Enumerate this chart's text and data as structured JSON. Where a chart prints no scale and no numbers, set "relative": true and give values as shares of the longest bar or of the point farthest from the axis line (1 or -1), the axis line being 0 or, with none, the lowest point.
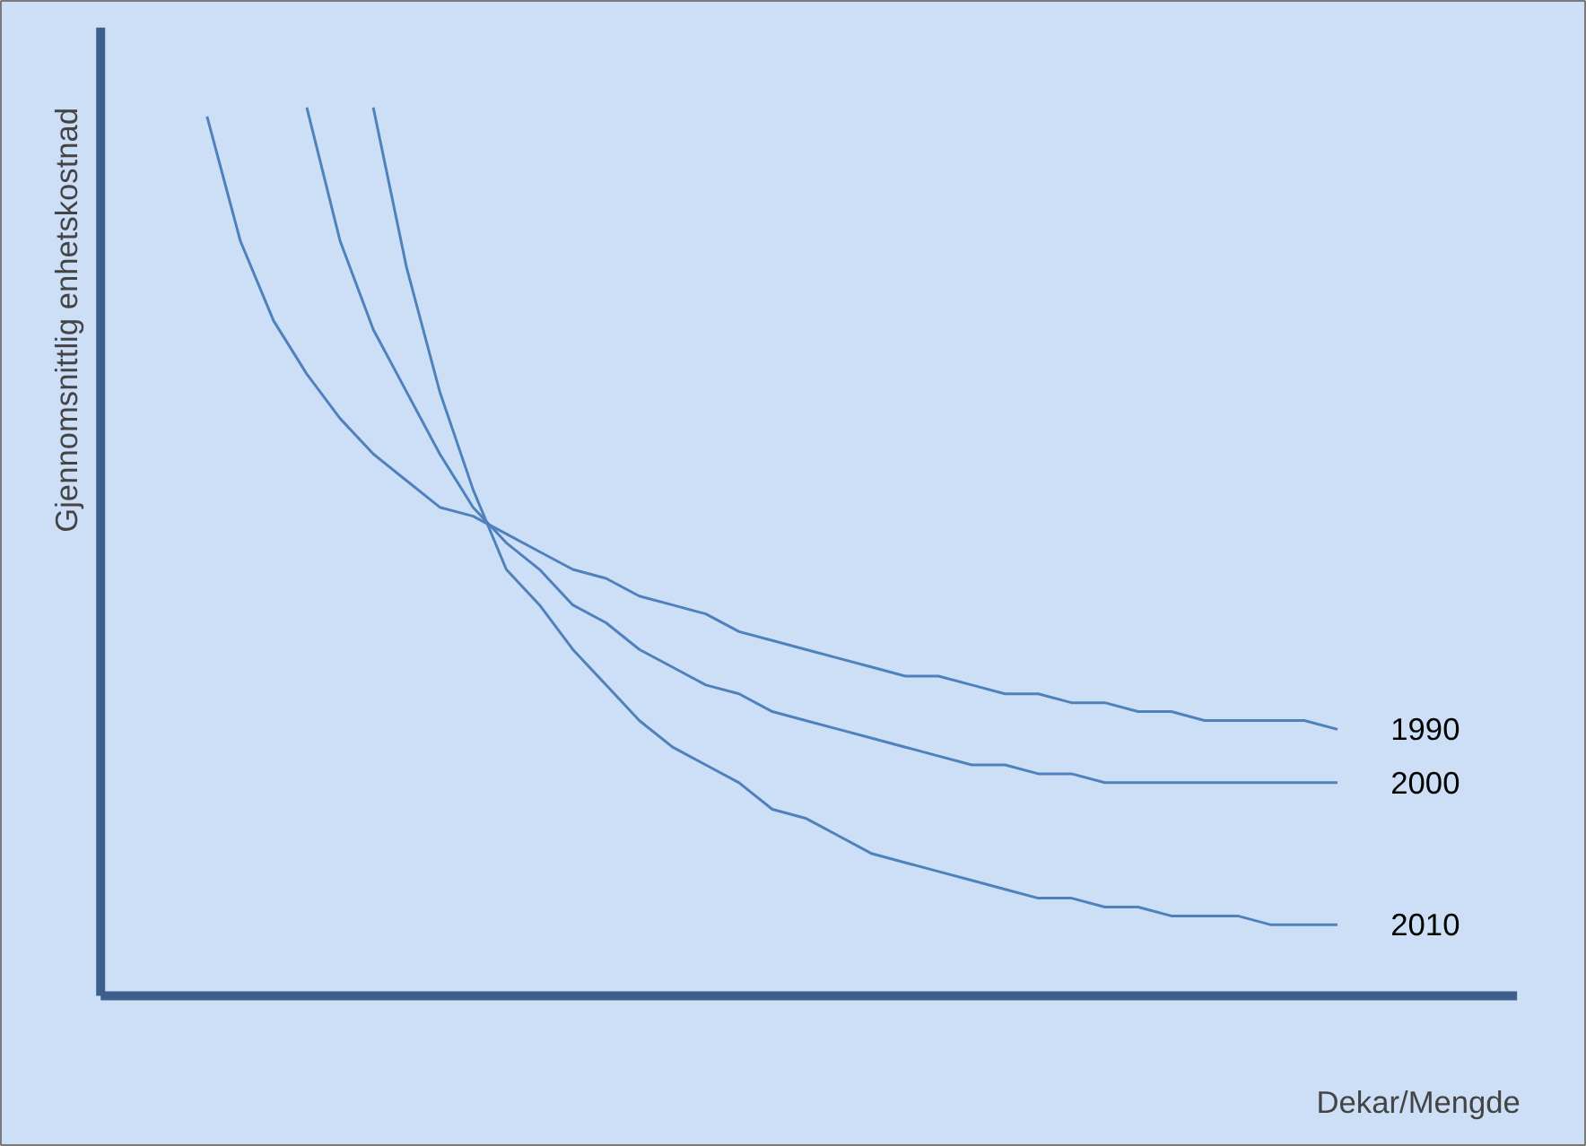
{
  "chart_data": {
    "type": "line",
    "relative": true,
    "xlabel": "Dekar/Mengde",
    "ylabel": "Gjennomsnittlig enhetskostnad",
    "grid": false,
    "marker": "none",
    "line_style": "solid",
    "categories": [
      null,
      null,
      null,
      null,
      null,
      null,
      null,
      null,
      null,
      null,
      null,
      null,
      null,
      null,
      null,
      null,
      null,
      null,
      null,
      null,
      null,
      null,
      null,
      null,
      null,
      null,
      null,
      null,
      null,
      null,
      null,
      null,
      null,
      null,
      null
    ],
    "series": [
      {
        "name": "1990",
        "color": "#4f81bd",
        "values": [
          0.99,
          0.85,
          0.76,
          0.7,
          0.65,
          0.61,
          0.58,
          0.55,
          0.54,
          0.52,
          0.5,
          0.48,
          0.47,
          0.45,
          0.44,
          0.43,
          0.41,
          0.4,
          0.39,
          0.38,
          0.37,
          0.36,
          0.36,
          0.35,
          0.34,
          0.34,
          0.33,
          0.33,
          0.32,
          0.32,
          0.31,
          0.31,
          0.31,
          0.31,
          0.3
        ]
      },
      {
        "name": "2000",
        "color": "#4f81bd",
        "values": [
          null,
          null,
          null,
          1.0,
          0.85,
          0.75,
          0.68,
          0.61,
          0.55,
          0.51,
          0.48,
          0.44,
          0.42,
          0.39,
          0.37,
          0.35,
          0.34,
          0.32,
          0.31,
          0.3,
          0.29,
          0.28,
          0.27,
          0.26,
          0.26,
          0.25,
          0.25,
          0.24,
          0.24,
          0.24,
          0.24,
          0.24,
          0.24,
          0.24,
          0.24
        ]
      },
      {
        "name": "2010",
        "color": "#4f81bd",
        "values": [
          null,
          null,
          null,
          null,
          null,
          1.0,
          0.82,
          0.68,
          0.57,
          0.48,
          0.44,
          0.39,
          0.35,
          0.31,
          0.28,
          0.26,
          0.24,
          0.21,
          0.2,
          0.18,
          0.16,
          0.15,
          0.14,
          0.13,
          0.12,
          0.11,
          0.11,
          0.1,
          0.1,
          0.09,
          0.09,
          0.09,
          0.08,
          0.08,
          0.08
        ]
      }
    ]
  }
}
